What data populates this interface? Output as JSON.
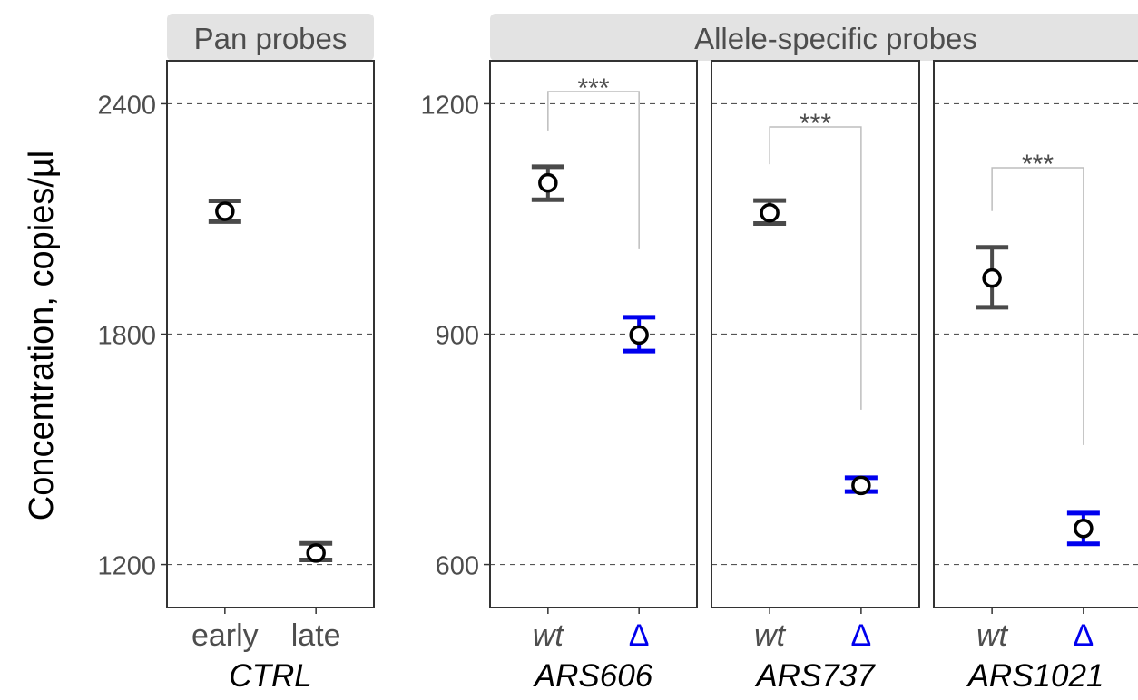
{
  "chart_data": {
    "type": "errorbar",
    "ylabel": "Concentration, copies/µl",
    "colors": {
      "wt": "#4a4a4a",
      "delta": "#0000ee",
      "strip_bg": "#e3e3e3",
      "frame": "#333333",
      "bracket": "#bdbdbd"
    },
    "panels": [
      {
        "id": "ctrl",
        "strip": "Pan probes",
        "group_label": "CTRL",
        "yticks": [
          1200,
          1800,
          2400
        ],
        "ylim": [
          1088,
          2512
        ],
        "categories": [
          {
            "label": "early",
            "italic": false,
            "color": "wt",
            "mean": 2120,
            "low": 2093,
            "high": 2147
          },
          {
            "label": "late",
            "italic": false,
            "color": "wt",
            "mean": 1230,
            "low": 1212,
            "high": 1255
          }
        ]
      },
      {
        "id": "ars606",
        "strip": "Allele-specific probes",
        "group_label": "ARS606",
        "yticks": [
          600,
          900,
          1200
        ],
        "ylim": [
          544,
          1256
        ],
        "significance": "***",
        "categories": [
          {
            "label": "wt",
            "italic": true,
            "color": "wt",
            "mean": 1097,
            "low": 1075,
            "high": 1118
          },
          {
            "label": "Δ",
            "italic": false,
            "color": "delta",
            "mean": 899,
            "low": 878,
            "high": 922
          }
        ]
      },
      {
        "id": "ars737",
        "strip": "Allele-specific probes",
        "group_label": "ARS737",
        "yticks": [
          600,
          900,
          1200
        ],
        "ylim": [
          544,
          1256
        ],
        "significance": "***",
        "categories": [
          {
            "label": "wt",
            "italic": true,
            "color": "wt",
            "mean": 1058,
            "low": 1044,
            "high": 1074
          },
          {
            "label": "Δ",
            "italic": false,
            "color": "delta",
            "mean": 703,
            "low": 695,
            "high": 713
          }
        ]
      },
      {
        "id": "ars1021",
        "strip": "Allele-specific probes",
        "group_label": "ARS1021",
        "yticks": [
          600,
          900,
          1200
        ],
        "ylim": [
          544,
          1256
        ],
        "significance": "***",
        "categories": [
          {
            "label": "wt",
            "italic": true,
            "color": "wt",
            "mean": 973,
            "low": 935,
            "high": 1013
          },
          {
            "label": "Δ",
            "italic": false,
            "color": "delta",
            "mean": 647,
            "low": 627,
            "high": 667
          }
        ]
      }
    ]
  }
}
